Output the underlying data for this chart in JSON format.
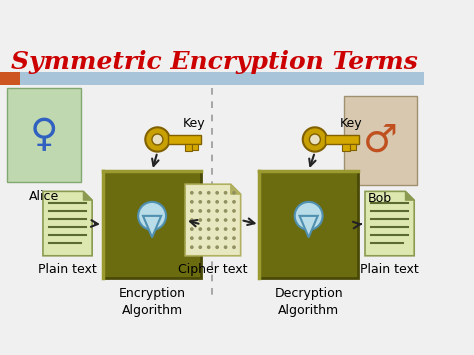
{
  "title": "Symmetric Encryption Terms",
  "title_color": "#cc0000",
  "title_fontsize": 18,
  "bg_color": "#f0f0f0",
  "header_bar_color": "#a8c4d8",
  "header_accent_color": "#cc5522",
  "box_color": "#6b6b10",
  "box_edge_color": "#4a4a08",
  "doc_color": "#dde8b0",
  "doc_edge_color": "#8a9a50",
  "cipher_doc_color": "#e8e8c0",
  "cipher_doc_edge": "#b0b060",
  "keyhole_body": "#b8dce8",
  "keyhole_edge": "#5090b0",
  "arrow_color": "#222222",
  "dashed_line_color": "#999999",
  "label_fontsize": 8,
  "key_label": "Key",
  "alice_label": "Alice",
  "bob_label": "Bob",
  "plain_text_label_left": "Plain text",
  "plain_text_label_right": "Plain text",
  "cipher_text_label": "Cipher text",
  "enc_algo_label": "Encryption\nAlgorithm",
  "dec_algo_label": "Decryption\nAlgorithm"
}
